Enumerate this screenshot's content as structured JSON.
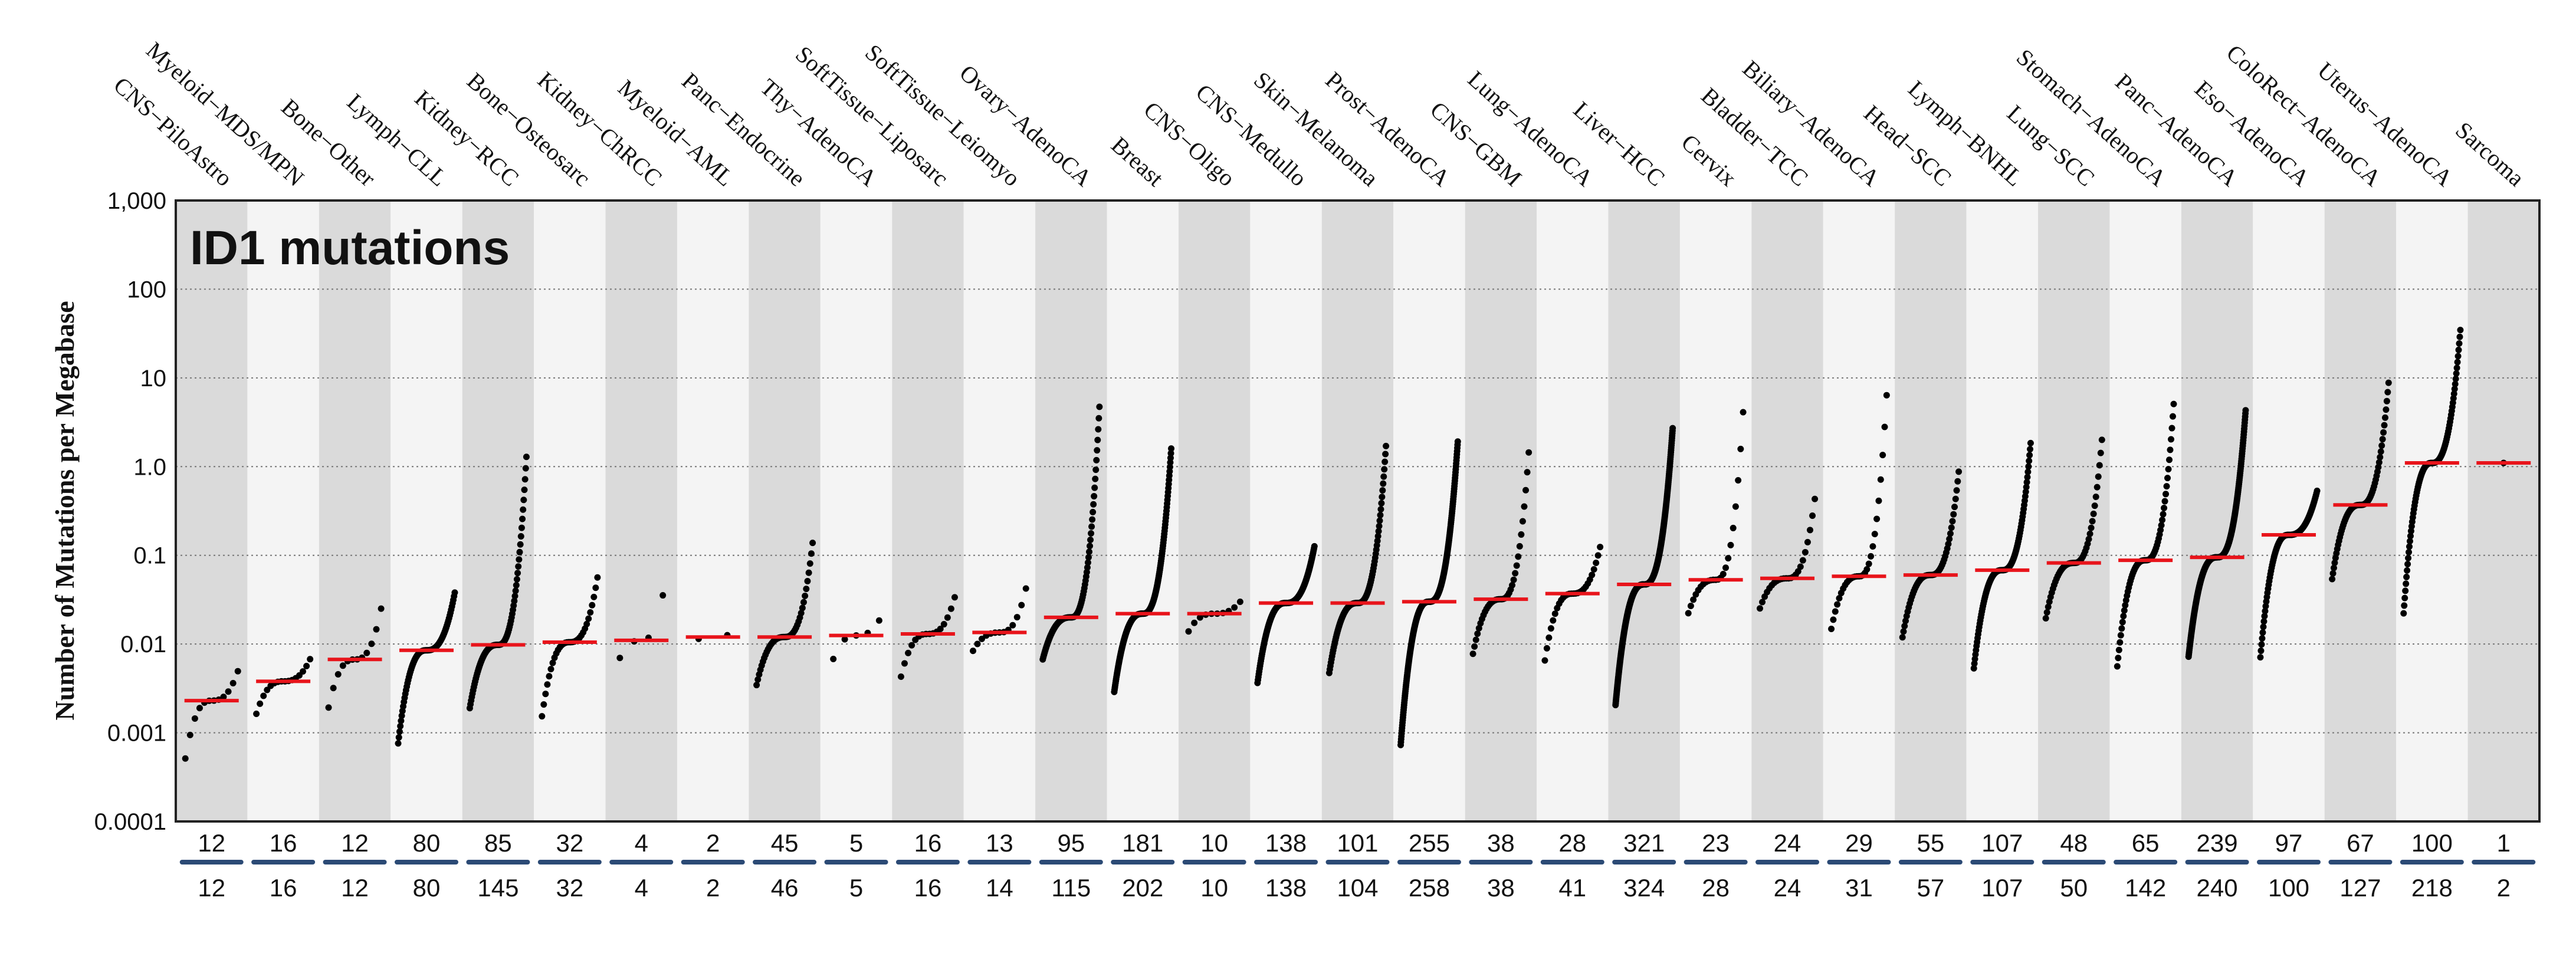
{
  "chart_data": {
    "type": "scatter",
    "title": "ID1 mutations",
    "ylabel": "Number of Mutations per Megabase",
    "xlabel": "",
    "yscale": "log",
    "ylim": [
      0.0001,
      1000
    ],
    "yticks": [
      1000,
      100,
      10,
      1,
      0.1,
      0.01,
      0.001,
      0.0001
    ],
    "ytick_labels": [
      "1,000",
      "100",
      "10",
      "1.0",
      "0.1",
      "0.01",
      "0.001",
      "0.0001"
    ],
    "grid": true,
    "colors": {
      "band_dark": "#dadada",
      "band_light": "#f4f4f4",
      "median": "#e8141b",
      "point": "#000000",
      "count_line": "#2b4a75"
    },
    "categories": [
      {
        "name": "CNS−PiloAstro",
        "n_mutated": 12,
        "n_total": 12,
        "median": 0.0023,
        "min": 0.00035,
        "max": 0.006
      },
      {
        "name": "Myeloid−MDS/MPN",
        "n_mutated": 16,
        "n_total": 16,
        "median": 0.0038,
        "min": 0.0014,
        "max": 0.0075
      },
      {
        "name": "Bone−Other",
        "n_mutated": 12,
        "n_total": 12,
        "median": 0.0067,
        "min": 0.0014,
        "max": 0.035
      },
      {
        "name": "Lymph−CLL",
        "n_mutated": 80,
        "n_total": 80,
        "median": 0.0085,
        "min": 0.0007,
        "max": 0.04
      },
      {
        "name": "Kidney−RCC",
        "n_mutated": 85,
        "n_total": 145,
        "median": 0.0098,
        "min": 0.0018,
        "max": 1.5
      },
      {
        "name": "Bone−Osteosarc",
        "n_mutated": 32,
        "n_total": 32,
        "median": 0.0105,
        "min": 0.0013,
        "max": 0.065
      },
      {
        "name": "Kidney−ChRCC",
        "n_mutated": 4,
        "n_total": 4,
        "median": 0.011,
        "min": 0.0042,
        "max": 0.13
      },
      {
        "name": "Myeloid−AML",
        "n_mutated": 2,
        "n_total": 2,
        "median": 0.012,
        "min": 0.009,
        "max": 0.016
      },
      {
        "name": "Panc−Endocrine",
        "n_mutated": 45,
        "n_total": 46,
        "median": 0.012,
        "min": 0.0032,
        "max": 0.16
      },
      {
        "name": "Thy−AdenoCA",
        "n_mutated": 5,
        "n_total": 5,
        "median": 0.0125,
        "min": 0.0042,
        "max": 0.025
      },
      {
        "name": "SoftTissue−Liposarc",
        "n_mutated": 16,
        "n_total": 16,
        "median": 0.013,
        "min": 0.0035,
        "max": 0.04
      },
      {
        "name": "SoftTissue−Leiomyo",
        "n_mutated": 13,
        "n_total": 14,
        "median": 0.0135,
        "min": 0.0075,
        "max": 0.055
      },
      {
        "name": "Ovary−AdenoCA",
        "n_mutated": 95,
        "n_total": 115,
        "median": 0.02,
        "min": 0.0065,
        "max": 5.5
      },
      {
        "name": "Breast",
        "n_mutated": 181,
        "n_total": 202,
        "median": 0.022,
        "min": 0.0028,
        "max": 1.7
      },
      {
        "name": "CNS−Oligo",
        "n_mutated": 10,
        "n_total": 10,
        "median": 0.022,
        "min": 0.012,
        "max": 0.033
      },
      {
        "name": "CNS−Medullo",
        "n_mutated": 138,
        "n_total": 138,
        "median": 0.029,
        "min": 0.0035,
        "max": 0.13
      },
      {
        "name": "Skin−Melanoma",
        "n_mutated": 101,
        "n_total": 104,
        "median": 0.029,
        "min": 0.0045,
        "max": 1.9
      },
      {
        "name": "Prost−AdenoCA",
        "n_mutated": 255,
        "n_total": 258,
        "median": 0.03,
        "min": 0.0007,
        "max": 2.0
      },
      {
        "name": "CNS−GBM",
        "n_mutated": 38,
        "n_total": 38,
        "median": 0.032,
        "min": 0.007,
        "max": 1.9
      },
      {
        "name": "Lung−AdenoCA",
        "n_mutated": 28,
        "n_total": 41,
        "median": 0.037,
        "min": 0.0055,
        "max": 0.14
      },
      {
        "name": "Liver−HCC",
        "n_mutated": 321,
        "n_total": 324,
        "median": 0.047,
        "min": 0.002,
        "max": 2.8
      },
      {
        "name": "Cervix",
        "n_mutated": 23,
        "n_total": 28,
        "median": 0.053,
        "min": 0.02,
        "max": 7
      },
      {
        "name": "Bladder−TCC",
        "n_mutated": 24,
        "n_total": 24,
        "median": 0.055,
        "min": 0.023,
        "max": 0.55
      },
      {
        "name": "Biliary−AdenoCA",
        "n_mutated": 29,
        "n_total": 31,
        "median": 0.058,
        "min": 0.013,
        "max": 10
      },
      {
        "name": "Head−SCC",
        "n_mutated": 55,
        "n_total": 57,
        "median": 0.06,
        "min": 0.011,
        "max": 1.0
      },
      {
        "name": "Lymph−BNHL",
        "n_mutated": 107,
        "n_total": 107,
        "median": 0.068,
        "min": 0.005,
        "max": 2.0
      },
      {
        "name": "Lung−SCC",
        "n_mutated": 48,
        "n_total": 50,
        "median": 0.082,
        "min": 0.018,
        "max": 2.4
      },
      {
        "name": "Stomach−AdenoCA",
        "n_mutated": 65,
        "n_total": 142,
        "median": 0.088,
        "min": 0.005,
        "max": 6
      },
      {
        "name": "Panc−AdenoCA",
        "n_mutated": 239,
        "n_total": 240,
        "median": 0.095,
        "min": 0.007,
        "max": 4.5
      },
      {
        "name": "Eso−AdenoCA",
        "n_mutated": 97,
        "n_total": 100,
        "median": 0.17,
        "min": 0.0065,
        "max": 0.55
      },
      {
        "name": "ColoRect−AdenoCA",
        "n_mutated": 67,
        "n_total": 127,
        "median": 0.37,
        "min": 0.05,
        "max": 10
      },
      {
        "name": "Uterus−AdenoCA",
        "n_mutated": 100,
        "n_total": 218,
        "median": 1.1,
        "min": 0.02,
        "max": 38
      },
      {
        "name": "Sarcoma",
        "n_mutated": 1,
        "n_total": 2,
        "median": 1.1,
        "min": 1.1,
        "max": 1.1
      }
    ]
  }
}
